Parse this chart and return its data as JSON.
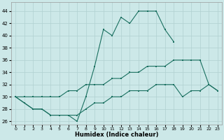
{
  "xlabel": "Humidex (Indice chaleur)",
  "xlim": [
    -0.5,
    23.5
  ],
  "ylim": [
    25.5,
    45.5
  ],
  "yticks": [
    26,
    28,
    30,
    32,
    34,
    36,
    38,
    40,
    42,
    44
  ],
  "xticks": [
    0,
    1,
    2,
    3,
    4,
    5,
    6,
    7,
    8,
    9,
    10,
    11,
    12,
    13,
    14,
    15,
    16,
    17,
    18,
    19,
    20,
    21,
    22,
    23
  ],
  "bg_color": "#cce8e8",
  "grid_color": "#b0d0d0",
  "line_color": "#1a7060",
  "line1_x": [
    0,
    1,
    2,
    3,
    4,
    5,
    6,
    7,
    8,
    9,
    10,
    11,
    12,
    13,
    14,
    15,
    16,
    17,
    18
  ],
  "line1_y": [
    30,
    29,
    28,
    28,
    27,
    27,
    27,
    26,
    30,
    35,
    41,
    40,
    43,
    42,
    44,
    44,
    44,
    41,
    39
  ],
  "line2_x": [
    0,
    1,
    2,
    3,
    4,
    5,
    6,
    7,
    8,
    9,
    10,
    11,
    12,
    13,
    14,
    15,
    16,
    17,
    18,
    19,
    20,
    21,
    22,
    23
  ],
  "line2_y": [
    30,
    30,
    30,
    30,
    30,
    30,
    31,
    31,
    32,
    32,
    32,
    33,
    33,
    34,
    34,
    35,
    35,
    35,
    36,
    36,
    36,
    36,
    32,
    31
  ],
  "line3_x": [
    0,
    1,
    2,
    3,
    4,
    5,
    6,
    7,
    8,
    9,
    10,
    11,
    12,
    13,
    14,
    15,
    16,
    17,
    18,
    19,
    20,
    21,
    22,
    23
  ],
  "line3_y": [
    30,
    29,
    28,
    28,
    27,
    27,
    27,
    27,
    28,
    29,
    29,
    30,
    30,
    31,
    31,
    31,
    32,
    32,
    32,
    30,
    31,
    31,
    32,
    31
  ]
}
